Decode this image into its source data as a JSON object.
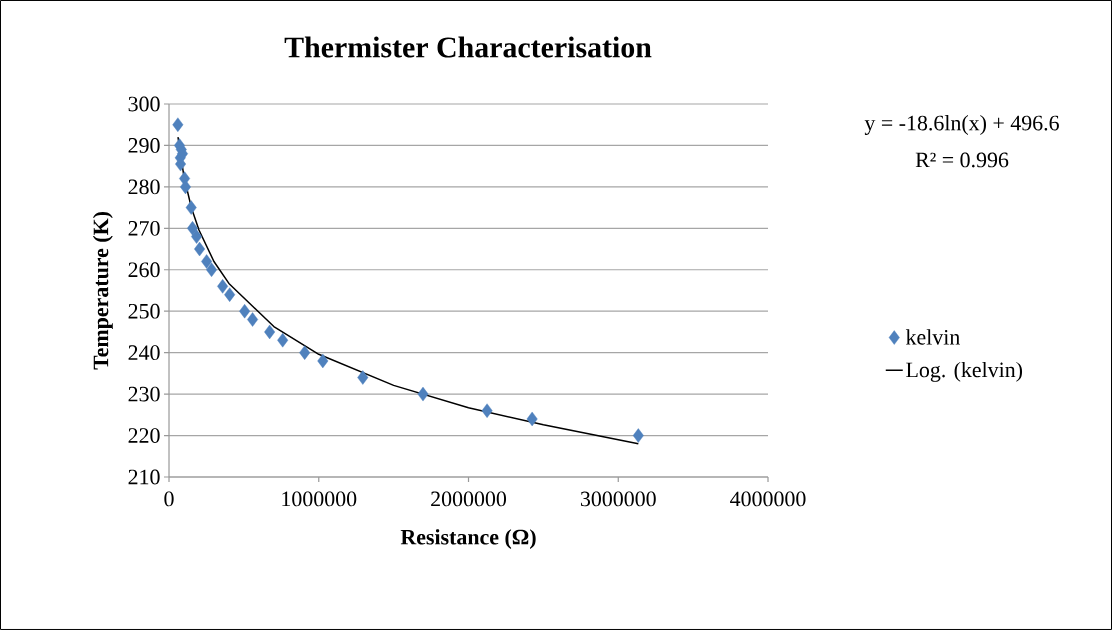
{
  "chart_data": {
    "type": "scatter",
    "title": "Thermister Characterisation",
    "xlabel": "Resistance (Ω)",
    "ylabel": "Temperature (K)",
    "annotations": [
      "y = -18.6ln(x) + 496.6",
      "R² = 0.996"
    ],
    "series": [
      {
        "name": "kelvin",
        "color": "#4f81bd",
        "marker": "diamond",
        "x": [
          59000,
          70000,
          75000,
          77000,
          82000,
          90000,
          104000,
          110000,
          148000,
          157000,
          184000,
          204000,
          251000,
          284000,
          358000,
          405000,
          505000,
          558000,
          672000,
          759000,
          906000,
          1027000,
          1294000,
          1696000,
          2124000,
          2425000,
          3134000
        ],
        "values": [
          295,
          290,
          287,
          285.5,
          289,
          288,
          282,
          280,
          275,
          270,
          268,
          265,
          262,
          260,
          256,
          254,
          250,
          248,
          245,
          243,
          240,
          238,
          234,
          230,
          226,
          224,
          220
        ]
      },
      {
        "name": "Log. (kelvin)",
        "type": "line",
        "color": "#000000",
        "marker": "none",
        "x": [
          60000,
          100000,
          150000,
          200000,
          300000,
          400000,
          700000,
          1000000,
          1500000,
          2000000,
          2500000,
          3134000
        ],
        "values": [
          292,
          282.4,
          274.9,
          269.6,
          262,
          256.7,
          246.3,
          239.6,
          232.1,
          226.7,
          222.6,
          218
        ]
      }
    ],
    "xlim": [
      0,
      4000000
    ],
    "xticks": [
      0,
      1000000,
      2000000,
      3000000,
      4000000
    ],
    "ylim": [
      210,
      300
    ],
    "yticks": [
      210,
      220,
      230,
      240,
      250,
      260,
      270,
      280,
      290,
      300
    ],
    "grid": "y",
    "legend": "right"
  }
}
